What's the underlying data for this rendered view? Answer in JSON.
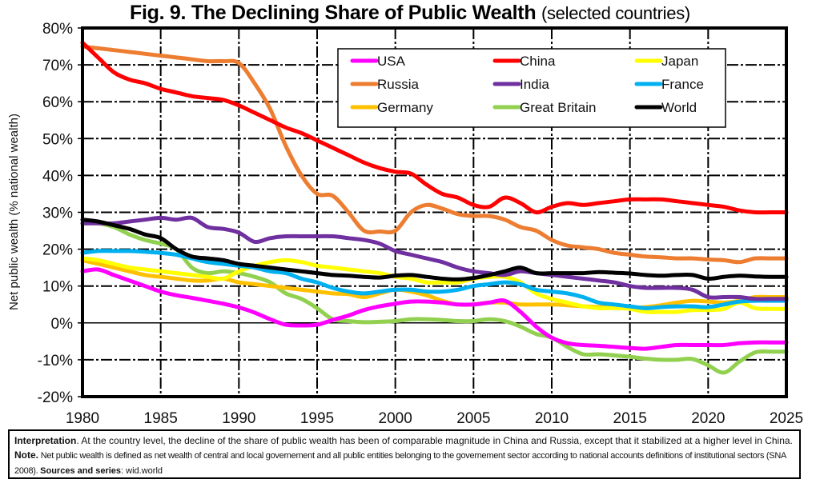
{
  "title": {
    "main": "Fig. 9. The Declining Share of Public Wealth",
    "sub": "(selected countries)"
  },
  "note": {
    "interp_label": "Interpretation",
    "interp_text": ". At the country level, the decline of the share of public wealth has been of comparable magnitude in China and Russia, except that it stabilized at a higher level in China. ",
    "note_label": "Note.",
    "note_text": " Net public wealth is defined as net wealth of central and local governement and all public entities belonging to the governement sector according to national accounts definitions of institutional sectors (SNA 2008). ",
    "sources_label": "Sources and series",
    "sources_text": ": wid.world"
  },
  "chart_data": {
    "type": "line",
    "title": "Fig. 9. The Declining Share of Public Wealth (selected countries)",
    "xlabel": "",
    "ylabel": "Net public wealth (% national wealth)",
    "xlim": [
      1980,
      2025
    ],
    "ylim": [
      -20,
      80
    ],
    "xticks": [
      1980,
      1985,
      1990,
      1995,
      2000,
      2005,
      2010,
      2015,
      2020,
      2025
    ],
    "yticks": [
      -20,
      -10,
      0,
      10,
      20,
      30,
      40,
      50,
      60,
      70,
      80
    ],
    "ytick_labels": [
      "-20%",
      "-10%",
      "0%",
      "10%",
      "20%",
      "30%",
      "40%",
      "50%",
      "60%",
      "70%",
      "80%"
    ],
    "grid": true,
    "legend_position": "top-right",
    "x": [
      1980,
      1981,
      1982,
      1983,
      1984,
      1985,
      1986,
      1987,
      1988,
      1989,
      1990,
      1991,
      1992,
      1993,
      1994,
      1995,
      1996,
      1997,
      1998,
      1999,
      2000,
      2001,
      2002,
      2003,
      2004,
      2005,
      2006,
      2007,
      2008,
      2009,
      2010,
      2011,
      2012,
      2013,
      2014,
      2015,
      2016,
      2017,
      2018,
      2019,
      2020,
      2021,
      2022,
      2023,
      2024,
      2025
    ],
    "series": [
      {
        "name": "USA",
        "color": "#FF00FF",
        "values": [
          14,
          14.5,
          13,
          11.5,
          10,
          8.5,
          7.5,
          6.8,
          6,
          5.2,
          4.2,
          2.8,
          1,
          -0.5,
          -0.7,
          -0.5,
          0.8,
          2,
          3.5,
          4.5,
          5.2,
          5.8,
          5.8,
          5.5,
          5,
          5,
          5.5,
          6,
          3,
          -1,
          -4,
          -5.5,
          -6,
          -6.2,
          -6.5,
          -6.8,
          -7,
          -6.5,
          -6,
          -6,
          -6,
          -6,
          -5.5,
          -5.3,
          -5.3,
          -5.3
        ]
      },
      {
        "name": "China",
        "color": "#FF0000",
        "values": [
          76,
          72,
          68,
          66,
          65,
          63.5,
          62.5,
          61.5,
          61,
          60.5,
          59,
          57,
          55,
          53,
          51.5,
          49.5,
          47.5,
          45.5,
          43.5,
          42,
          41,
          40.5,
          37.5,
          35,
          34,
          32,
          31.5,
          34,
          32.5,
          30,
          31.5,
          32.5,
          32,
          32.5,
          33,
          33.5,
          33.5,
          33.5,
          33,
          32.5,
          32,
          31.5,
          30.5,
          30,
          30,
          30
        ]
      },
      {
        "name": "Japan",
        "color": "#FFFF00",
        "values": [
          17.5,
          17,
          16,
          15,
          14.5,
          14,
          13.5,
          13,
          12.5,
          12,
          14,
          15.5,
          16.5,
          17,
          16.5,
          15.5,
          15,
          14.5,
          14,
          13.5,
          12.5,
          12,
          11,
          11,
          11,
          12,
          12.5,
          12.5,
          11,
          8,
          6.5,
          5.5,
          4.5,
          4,
          4,
          3.8,
          3,
          3,
          3,
          3.5,
          3.5,
          3.8,
          5.5,
          4,
          3.8,
          3.8
        ]
      },
      {
        "name": "Russia",
        "color": "#ED7D31",
        "values": [
          75,
          74.5,
          74,
          73.5,
          73,
          72.5,
          72,
          71.5,
          71,
          71,
          70.5,
          65,
          58,
          48,
          40,
          35,
          34.5,
          30,
          25,
          24.8,
          25,
          30,
          32,
          31,
          29.5,
          29,
          29,
          28,
          26,
          25,
          22.5,
          21,
          20.5,
          20,
          19,
          18.5,
          18,
          17.8,
          17.5,
          17.5,
          17.2,
          17,
          16.5,
          17.5,
          17.5,
          17.5
        ]
      },
      {
        "name": "India",
        "color": "#7030A0",
        "values": [
          27,
          27,
          27,
          27.5,
          28,
          28.5,
          28,
          28.5,
          26,
          25.5,
          24.5,
          22,
          23,
          23.5,
          23.5,
          23.5,
          23.5,
          23,
          22.5,
          21.5,
          19.5,
          18.5,
          17.5,
          16.5,
          15,
          14,
          13.5,
          13,
          14,
          13.5,
          13,
          12.5,
          12,
          11.5,
          11,
          10,
          9.5,
          9.5,
          9.5,
          9,
          7,
          7,
          7,
          6.5,
          6.5,
          6.5
        ]
      },
      {
        "name": "France",
        "color": "#00B0F0",
        "values": [
          19,
          19.5,
          19.5,
          19.5,
          19.3,
          19,
          18.5,
          17.5,
          16.5,
          16,
          15.5,
          15,
          14,
          13.5,
          12,
          11,
          9.5,
          8.5,
          8,
          8.5,
          9,
          9,
          8.5,
          8.5,
          9,
          10,
          10.5,
          11,
          10.5,
          9,
          8.5,
          8,
          7,
          5.5,
          5,
          4.5,
          4,
          4.3,
          4.5,
          4.5,
          4.3,
          5,
          5.8,
          6,
          6,
          6
        ]
      },
      {
        "name": "Germany",
        "color": "#FFC000",
        "values": [
          17,
          16,
          15,
          14,
          13,
          12.5,
          12,
          11.5,
          11.5,
          12,
          11,
          10.5,
          10,
          9.5,
          9,
          8.5,
          8,
          7.8,
          7,
          8,
          9,
          8.5,
          7.5,
          6,
          5,
          5,
          5.5,
          5.5,
          5,
          5,
          5,
          4.8,
          4.5,
          4.3,
          4.2,
          4,
          4.3,
          4.8,
          5.5,
          6,
          5.8,
          5.5,
          6,
          7,
          7,
          7
        ]
      },
      {
        "name": "Great Britain",
        "color": "#92D050",
        "values": [
          27,
          27,
          26,
          24,
          22.5,
          21.5,
          20,
          15,
          13.5,
          14,
          13.5,
          12.5,
          11,
          8,
          6.5,
          4,
          1,
          0.5,
          0.2,
          0.3,
          0.5,
          1,
          1,
          0.8,
          0.5,
          0.5,
          1,
          0.5,
          -1,
          -3,
          -4,
          -6.5,
          -8.5,
          -8.5,
          -8.8,
          -9.2,
          -9.7,
          -10,
          -10,
          -9.8,
          -11.5,
          -13.5,
          -10.5,
          -8,
          -7.8,
          -7.8
        ]
      },
      {
        "name": "World",
        "color": "#000000",
        "values": [
          28,
          27.5,
          26.5,
          25.5,
          24,
          23,
          20,
          18,
          17.5,
          17,
          16,
          15.5,
          15,
          14.5,
          14,
          13.5,
          13,
          12.8,
          12.5,
          12.3,
          12.8,
          13,
          12.5,
          12,
          11.8,
          12.2,
          13,
          14,
          15,
          13.5,
          13.5,
          13.5,
          13.5,
          13.8,
          13.6,
          13.4,
          13,
          12.8,
          13,
          13,
          12,
          12.5,
          12.8,
          12.6,
          12.5,
          12.5
        ]
      }
    ]
  }
}
